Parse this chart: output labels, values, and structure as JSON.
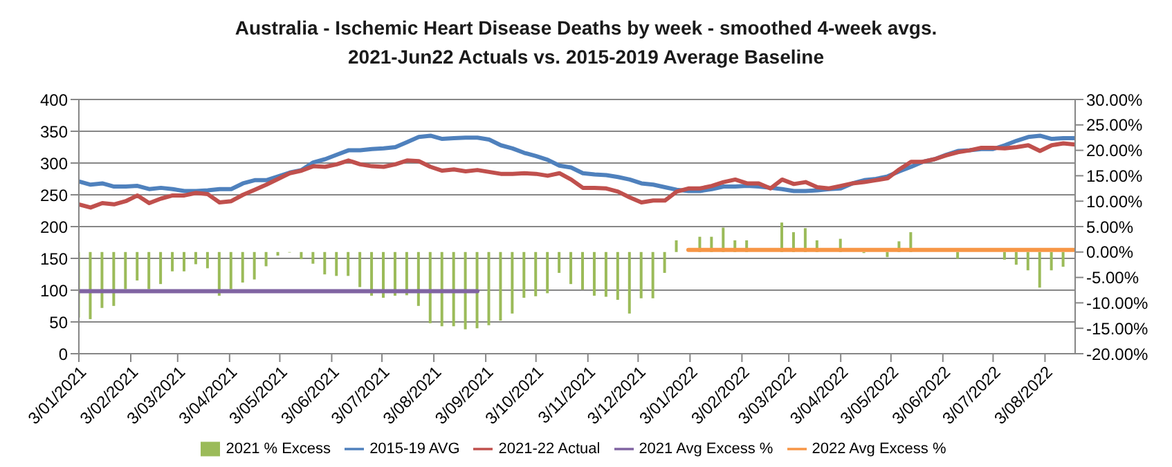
{
  "chart_data": {
    "type": "line",
    "title": "Australia - Ischemic Heart Disease Deaths by week - smoothed 4-week avgs.",
    "subtitle": "2021-Jun22 Actuals vs. 2015-2019 Average Baseline",
    "x": [
      "2021-01-03",
      "2021-01-10",
      "2021-01-17",
      "2021-01-24",
      "2021-01-31",
      "2021-02-07",
      "2021-02-14",
      "2021-02-21",
      "2021-02-28",
      "2021-03-07",
      "2021-03-14",
      "2021-03-21",
      "2021-03-28",
      "2021-04-04",
      "2021-04-11",
      "2021-04-18",
      "2021-04-25",
      "2021-05-02",
      "2021-05-09",
      "2021-05-16",
      "2021-05-23",
      "2021-05-30",
      "2021-06-06",
      "2021-06-13",
      "2021-06-20",
      "2021-06-27",
      "2021-07-04",
      "2021-07-11",
      "2021-07-18",
      "2021-07-25",
      "2021-08-01",
      "2021-08-08",
      "2021-08-15",
      "2021-08-22",
      "2021-08-29",
      "2021-09-05",
      "2021-09-12",
      "2021-09-19",
      "2021-09-26",
      "2021-10-03",
      "2021-10-10",
      "2021-10-17",
      "2021-10-24",
      "2021-10-31",
      "2021-11-07",
      "2021-11-14",
      "2021-11-21",
      "2021-11-28",
      "2021-12-05",
      "2021-12-12",
      "2021-12-19",
      "2021-12-26",
      "2022-01-02",
      "2022-01-09",
      "2022-01-16",
      "2022-01-23",
      "2022-01-30",
      "2022-02-06",
      "2022-02-13",
      "2022-02-20",
      "2022-02-27",
      "2022-03-06",
      "2022-03-13",
      "2022-03-20",
      "2022-03-27",
      "2022-04-03",
      "2022-04-10",
      "2022-04-17",
      "2022-04-24",
      "2022-05-01",
      "2022-05-08",
      "2022-05-15",
      "2022-05-22",
      "2022-05-29",
      "2022-06-05",
      "2022-06-12",
      "2022-06-19",
      "2022-06-26",
      "2022-07-03",
      "2022-07-10",
      "2022-07-17",
      "2022-07-24",
      "2022-07-31",
      "2022-08-07",
      "2022-08-14",
      "2022-08-21"
    ],
    "series": [
      {
        "name": "2021 % Excess",
        "type": "bar",
        "axis": "y2",
        "color": "#9bbb59",
        "values": [
          -12.9,
          -13.2,
          -11.0,
          -10.6,
          -7.3,
          -5.6,
          -7.3,
          -6.3,
          -3.8,
          -3.8,
          -2.4,
          -3.2,
          -8.6,
          -7.3,
          -6.0,
          -5.4,
          -2.8,
          -0.7,
          -0.1,
          -1.4,
          -2.3,
          -4.4,
          -4.7,
          -4.7,
          -6.9,
          -8.6,
          -9.0,
          -8.6,
          -8.5,
          -10.6,
          -14.0,
          -14.6,
          -14.6,
          -15.2,
          -15.0,
          -14.4,
          -13.5,
          -12.1,
          -9.0,
          -8.7,
          -8.1,
          -4.1,
          -6.3,
          -7.4,
          -8.6,
          -8.8,
          -9.4,
          -12.1,
          -9.1,
          -9.1,
          -4.1,
          2.3,
          null,
          3.0,
          3.0,
          4.8,
          2.3,
          2.3,
          null,
          null,
          5.8,
          3.9,
          4.7,
          2.3,
          null,
          2.6,
          null,
          -0.2,
          null,
          -1.0,
          2.1,
          3.9,
          null,
          null,
          null,
          -1.3,
          null,
          null,
          null,
          -1.5,
          -2.5,
          -3.6,
          -7.0,
          -3.6,
          -2.9,
          null
        ]
      },
      {
        "name": "2015-19 AVG",
        "color": "#4f81bd",
        "values": [
          271,
          266,
          268,
          263,
          263,
          264,
          259,
          261,
          259,
          256,
          256,
          257,
          259,
          259,
          268,
          273,
          273,
          279,
          285,
          289,
          301,
          306,
          313,
          320,
          320,
          322,
          323,
          325,
          333,
          341,
          343,
          338,
          339,
          340,
          340,
          337,
          328,
          323,
          316,
          311,
          305,
          296,
          293,
          284,
          282,
          281,
          278,
          274,
          268,
          266,
          262,
          258,
          256,
          256,
          259,
          263,
          263,
          264,
          263,
          261,
          259,
          256,
          256,
          257,
          259,
          260,
          268,
          273,
          275,
          279,
          287,
          294,
          302,
          306,
          313,
          319,
          320,
          322,
          322,
          328,
          335,
          341,
          343,
          338,
          339,
          339
        ]
      },
      {
        "name": "2021-22 Actual",
        "color": "#c0504d",
        "values": [
          235,
          230,
          237,
          235,
          240,
          249,
          237,
          244,
          249,
          249,
          253,
          251,
          238,
          240,
          250,
          258,
          266,
          275,
          284,
          288,
          295,
          294,
          298,
          304,
          298,
          295,
          294,
          298,
          304,
          303,
          294,
          288,
          290,
          287,
          289,
          286,
          283,
          283,
          284,
          283,
          280,
          284,
          274,
          261,
          261,
          260,
          255,
          246,
          238,
          241,
          241,
          255,
          260,
          260,
          264,
          270,
          274,
          268,
          268,
          260,
          274,
          267,
          270,
          262,
          260,
          264,
          268,
          270,
          273,
          276,
          290,
          302,
          302,
          306,
          312,
          317,
          320,
          324,
          324,
          323,
          325,
          328,
          319,
          328,
          331,
          329
        ]
      },
      {
        "name": "2021 Avg Excess %",
        "axis": "y2",
        "color": "#8064a2",
        "x": [
          "2021-01-03",
          "2021-08-29"
        ],
        "values": [
          -7.7,
          -7.7
        ]
      },
      {
        "name": "2022 Avg Excess %",
        "axis": "y2",
        "color": "#f79646",
        "x": [
          "2022-01-02",
          "2022-08-21"
        ],
        "values": [
          0.4,
          0.4
        ]
      }
    ],
    "xlim": [
      "2021-01-03",
      "2022-08-21"
    ],
    "xticks": [
      {
        "value": "2021-01-03",
        "label": "3/01/2021"
      },
      {
        "value": "2021-02-03",
        "label": "3/02/2021"
      },
      {
        "value": "2021-03-03",
        "label": "3/03/2021"
      },
      {
        "value": "2021-04-03",
        "label": "3/04/2021"
      },
      {
        "value": "2021-05-03",
        "label": "3/05/2021"
      },
      {
        "value": "2021-06-03",
        "label": "3/06/2021"
      },
      {
        "value": "2021-07-03",
        "label": "3/07/2021"
      },
      {
        "value": "2021-08-03",
        "label": "3/08/2021"
      },
      {
        "value": "2021-09-03",
        "label": "3/09/2021"
      },
      {
        "value": "2021-10-03",
        "label": "3/10/2021"
      },
      {
        "value": "2021-11-03",
        "label": "3/11/2021"
      },
      {
        "value": "2021-12-03",
        "label": "3/12/2021"
      },
      {
        "value": "2022-01-03",
        "label": "3/01/2022"
      },
      {
        "value": "2022-02-03",
        "label": "3/02/2022"
      },
      {
        "value": "2022-03-03",
        "label": "3/03/2022"
      },
      {
        "value": "2022-04-03",
        "label": "3/04/2022"
      },
      {
        "value": "2022-05-03",
        "label": "3/05/2022"
      },
      {
        "value": "2022-06-03",
        "label": "3/06/2022"
      },
      {
        "value": "2022-07-03",
        "label": "3/07/2022"
      },
      {
        "value": "2022-08-03",
        "label": "3/08/2022"
      }
    ],
    "ylim": [
      0,
      400
    ],
    "yticks": [
      0,
      50,
      100,
      150,
      200,
      250,
      300,
      350,
      400
    ],
    "y2lim": [
      -20,
      30
    ],
    "y2ticks": [
      {
        "value": 30,
        "label": "30.00%"
      },
      {
        "value": 25,
        "label": "25.00%"
      },
      {
        "value": 20,
        "label": "20.00%"
      },
      {
        "value": 15,
        "label": "15.00%"
      },
      {
        "value": 10,
        "label": "10.00%"
      },
      {
        "value": 5,
        "label": "5.00%"
      },
      {
        "value": 0,
        "label": "0.00%"
      },
      {
        "value": -5,
        "label": "-5.00%"
      },
      {
        "value": -10,
        "label": "-10.00%"
      },
      {
        "value": -15,
        "label": "-15.00%"
      },
      {
        "value": -20,
        "label": "-20.00%"
      }
    ],
    "grid": "y",
    "legend": "bottom",
    "marker": "none"
  }
}
